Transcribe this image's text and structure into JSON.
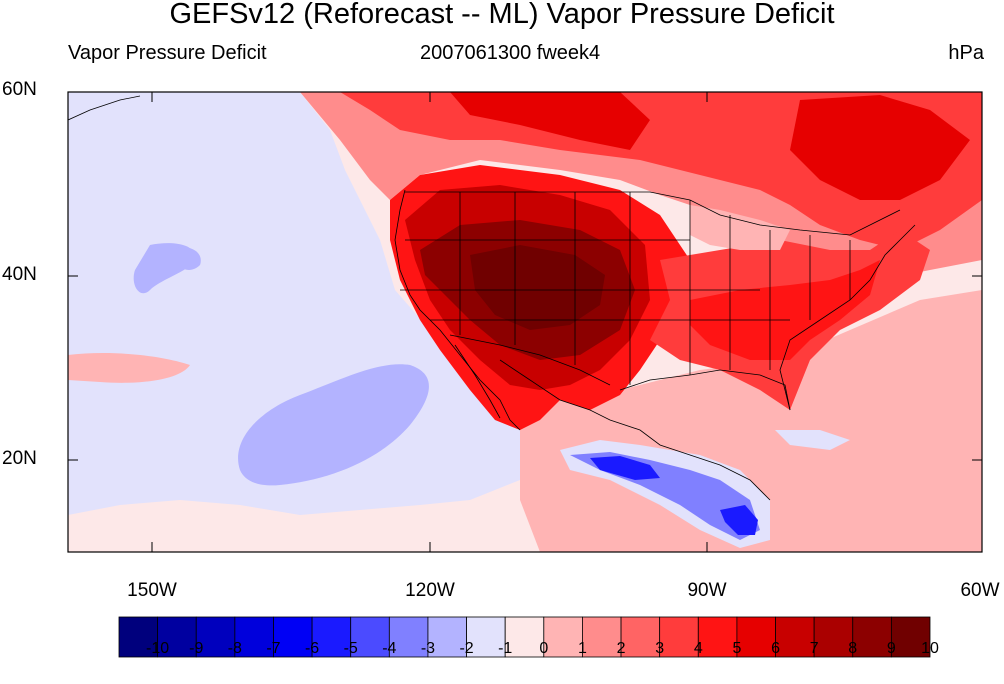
{
  "title": "GEFSv12 (Reforecast -- ML) Vapor Pressure Deficit",
  "subtitle_left": "Vapor Pressure Deficit",
  "subtitle_center": "2007061300 fweek4",
  "subtitle_right": "hPa",
  "lat_labels": [
    "60N",
    "40N",
    "20N"
  ],
  "lon_labels": [
    "150W",
    "120W",
    "90W",
    "60W"
  ],
  "map_extent": {
    "lon_min": -159,
    "lon_max": -60,
    "lat_min": 10,
    "lat_max": 60
  },
  "colorbar": {
    "labels": [
      "-10",
      "-9",
      "-8",
      "-7",
      "-6",
      "-5",
      "-4",
      "-3",
      "-2",
      "-1",
      "0",
      "1",
      "2",
      "3",
      "4",
      "5",
      "6",
      "7",
      "8",
      "9",
      "10"
    ],
    "colors": [
      "#00007d",
      "#0000a0",
      "#0000be",
      "#0000dc",
      "#0000f5",
      "#1a1aff",
      "#4b4bff",
      "#8080ff",
      "#b3b3ff",
      "#e2e2fc",
      "#fde8e8",
      "#ffb4b4",
      "#ff8c8c",
      "#ff6464",
      "#ff3c3c",
      "#ff1414",
      "#e60000",
      "#c80000",
      "#aa0000",
      "#8c0000",
      "#700000"
    ]
  },
  "colors": {
    "ocean_background": "#fde8e8",
    "negative_light": "#e2e2fc",
    "negative_mid": "#b3b3ff",
    "positive_light": "#ffb4b4",
    "positive_mid": "#ff8c8c",
    "positive_strong": "#ff1414",
    "positive_darker": "#c80000",
    "positive_darkest": "#8c0000"
  }
}
